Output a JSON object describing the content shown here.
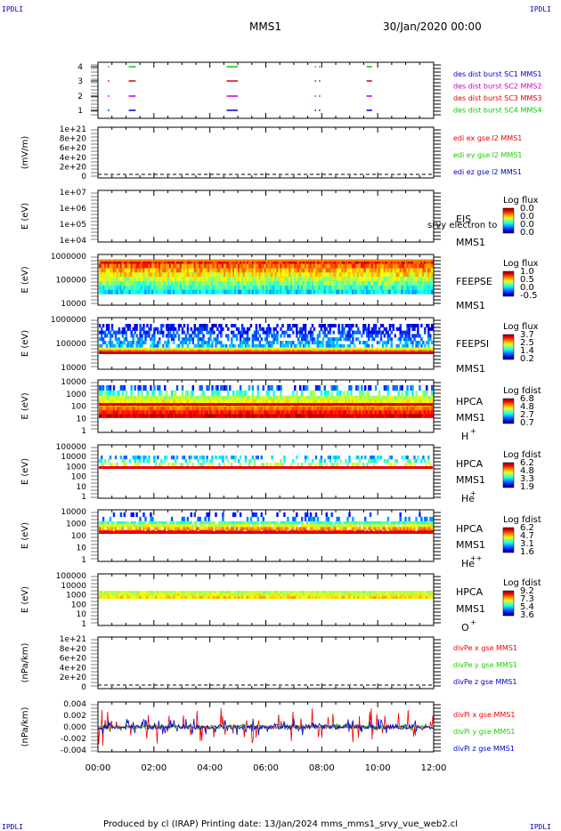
{
  "corners": {
    "tl": "IPDLI",
    "tr": "IPDLI",
    "bl": "IPDLI",
    "br": "IPDLI"
  },
  "header": {
    "spacecraft": "MMS1",
    "date": "30/Jan/2020 00:00"
  },
  "footer": {
    "text": "Produced by cl (IRAP)   Printing date: 13/Jan/2024   mms_mms1_srvy_vue_web2.cl"
  },
  "colors": {
    "mms1": "#0000cc",
    "mms2": "#cc00cc",
    "mms3": "#dd0000",
    "mms4": "#00cc00",
    "x": "#ee0000",
    "y": "#22cc00",
    "z": "#0000cc"
  },
  "chart_data": [
    {
      "type": "scatter",
      "ylim": [
        0.5,
        4.5
      ],
      "yticks": [
        "1",
        "2",
        "3",
        "4"
      ],
      "legend": [
        "des dist burst SC1 MMS1",
        "des dist burst SC2 MMS2",
        "des dist burst SC3 MMS3",
        "des dist burst SC4 MMS4"
      ],
      "intervals_hours": [
        [
          0.35,
          0.4
        ],
        [
          1.1,
          1.35
        ],
        [
          4.6,
          5.0
        ],
        [
          7.75,
          7.78
        ],
        [
          7.9,
          7.93
        ],
        [
          9.6,
          9.8
        ]
      ]
    },
    {
      "type": "line",
      "ylabel": "(mV/m)",
      "yticks": [
        "0",
        "2e+20",
        "4e+20",
        "6e+20",
        "8e+20",
        "1e+21"
      ],
      "legend": [
        "edi ex gse l2 MMS1",
        "edi ey gse l2 MMS1",
        "edi ez gse l2 MMS1"
      ]
    },
    {
      "type": "heatmap",
      "ylabel": "E (eV)",
      "yticks": [
        "1e+04",
        "1e+05",
        "1e+06",
        "1e+07"
      ],
      "label": "EIS",
      "spacecraft": "MMS1",
      "overlay_text": "srvy electron to",
      "colorbar": {
        "title": "Log flux",
        "ticks": [
          "0.0",
          "0.0",
          "0.0",
          "0.0"
        ]
      }
    },
    {
      "type": "heatmap",
      "ylabel": "E (eV)",
      "yticks": [
        "10000",
        "100000",
        "1000000"
      ],
      "label": "FEEPSE",
      "spacecraft": "MMS1",
      "colorbar": {
        "title": "Log flux",
        "ticks": [
          "1.0",
          "0.5",
          "0.0",
          "-0.5"
        ]
      }
    },
    {
      "type": "heatmap",
      "ylabel": "E (eV)",
      "yticks": [
        "10000",
        "100000",
        "1000000"
      ],
      "label": "FEEPSI",
      "spacecraft": "MMS1",
      "colorbar": {
        "title": "Log flux",
        "ticks": [
          "3.7",
          "2.5",
          "1.4",
          "0.2"
        ]
      }
    },
    {
      "type": "heatmap",
      "ylabel": "E (eV)",
      "yticks": [
        "1",
        "10",
        "100",
        "1000",
        "10000"
      ],
      "label": "HPCA",
      "spacecraft": "MMS1",
      "species": "H",
      "charge": "+",
      "colorbar": {
        "title": "Log fdist",
        "ticks": [
          "6.8",
          "4.8",
          "2.7",
          "0.7"
        ]
      }
    },
    {
      "type": "heatmap",
      "ylabel": "E (eV)",
      "yticks": [
        "1",
        "10",
        "100",
        "1000",
        "10000",
        "100000"
      ],
      "label": "HPCA",
      "spacecraft": "MMS1",
      "species": "He",
      "charge": "+",
      "colorbar": {
        "title": "Log fdist",
        "ticks": [
          "6.2",
          "4.8",
          "3.3",
          "1.9"
        ]
      }
    },
    {
      "type": "heatmap",
      "ylabel": "E (eV)",
      "yticks": [
        "1",
        "10",
        "100",
        "1000",
        "10000"
      ],
      "label": "HPCA",
      "spacecraft": "MMS1",
      "species": "He",
      "charge": "++",
      "colorbar": {
        "title": "Log fdist",
        "ticks": [
          "6.2",
          "4.7",
          "3.1",
          "1.6"
        ]
      }
    },
    {
      "type": "heatmap",
      "ylabel": "E (eV)",
      "yticks": [
        "1",
        "10",
        "100",
        "1000",
        "10000",
        "100000"
      ],
      "label": "HPCA",
      "spacecraft": "MMS1",
      "species": "O",
      "charge": "+",
      "colorbar": {
        "title": "Log fdist",
        "ticks": [
          "9.2",
          "7.3",
          "5.4",
          "3.6"
        ]
      }
    },
    {
      "type": "line",
      "ylabel": "(nPa/km)",
      "yticks": [
        "0",
        "2e+20",
        "4e+20",
        "6e+20",
        "8e+20",
        "1e+21"
      ],
      "legend": [
        "divPe x gse MMS1",
        "divPe y gse MMS1",
        "divPe z gse MMS1"
      ]
    },
    {
      "type": "line",
      "ylabel": "(nPa/km)",
      "yticks": [
        "-0.004",
        "-0.002",
        "0.000",
        "0.002",
        "0.004"
      ],
      "ylim": [
        -0.0055,
        0.0055
      ],
      "legend": [
        "divPi x gse MMS1",
        "divPi y gse MMS1",
        "divPi z gse MMS1"
      ]
    }
  ],
  "xaxis": {
    "ticks": [
      "00:00",
      "02:00",
      "04:00",
      "06:00",
      "08:00",
      "10:00",
      "12:00"
    ],
    "range_hours": [
      0,
      12
    ]
  }
}
